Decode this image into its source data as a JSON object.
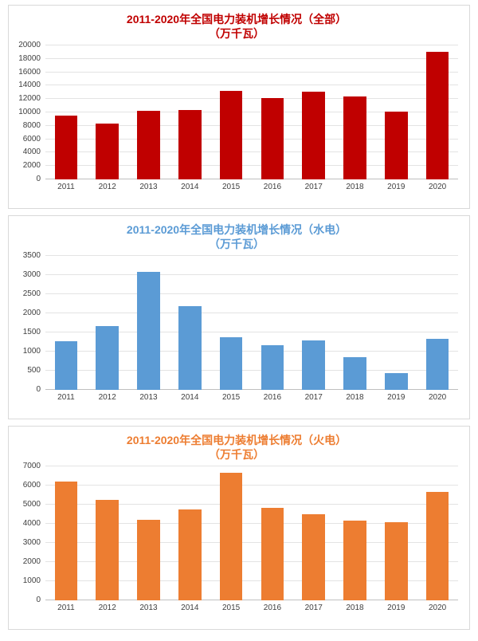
{
  "chart_data": [
    {
      "type": "bar",
      "title": "2011-2020年全国电力装机增长情况（全部）",
      "subtitle": "（万千瓦）",
      "categories": [
        "2011",
        "2012",
        "2013",
        "2014",
        "2015",
        "2016",
        "2017",
        "2018",
        "2019",
        "2020"
      ],
      "values": [
        9500,
        8300,
        10200,
        10400,
        13200,
        12100,
        13100,
        12400,
        10100,
        19100
      ],
      "xlabel": "",
      "ylabel": "",
      "ylim": [
        0,
        20000
      ],
      "ytick_step": 2000,
      "grid": true,
      "legend": "none",
      "bar_color": "#c00000",
      "title_color": "#c00000"
    },
    {
      "type": "bar",
      "title": "2011-2020年全国电力装机增长情况（水电）",
      "subtitle": "（万千瓦）",
      "categories": [
        "2011",
        "2012",
        "2013",
        "2014",
        "2015",
        "2016",
        "2017",
        "2018",
        "2019",
        "2020"
      ],
      "values": [
        1280,
        1660,
        3090,
        2180,
        1370,
        1170,
        1290,
        860,
        430,
        1330
      ],
      "xlabel": "",
      "ylabel": "",
      "ylim": [
        0,
        3500
      ],
      "ytick_step": 500,
      "grid": true,
      "legend": "none",
      "bar_color": "#5b9bd5",
      "title_color": "#5b9bd5"
    },
    {
      "type": "bar",
      "title": "2011-2020年全国电力装机增长情况（火电）",
      "subtitle": "（万千瓦）",
      "categories": [
        "2011",
        "2012",
        "2013",
        "2014",
        "2015",
        "2016",
        "2017",
        "2018",
        "2019",
        "2020"
      ],
      "values": [
        6200,
        5250,
        4200,
        4750,
        6650,
        4850,
        4500,
        4150,
        4100,
        5650
      ],
      "xlabel": "",
      "ylabel": "",
      "ylim": [
        0,
        7000
      ],
      "ytick_step": 1000,
      "grid": true,
      "legend": "none",
      "bar_color": "#ed7d31",
      "title_color": "#ed7d31"
    }
  ]
}
